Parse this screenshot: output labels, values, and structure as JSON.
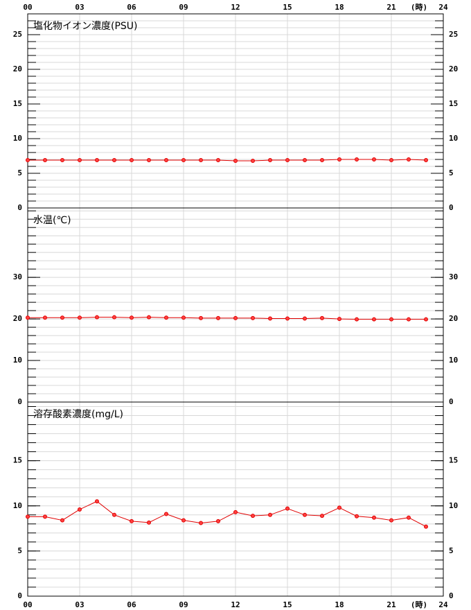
{
  "chart_data": [
    {
      "type": "line",
      "title": "塩化物イオン濃度(PSU)",
      "color": "#e00000",
      "grid": true,
      "minor_step": 1,
      "x": [
        0,
        1,
        2,
        3,
        4,
        5,
        6,
        7,
        8,
        9,
        10,
        11,
        12,
        13,
        14,
        15,
        16,
        17,
        18,
        19,
        20,
        21,
        22,
        23
      ],
      "values": [
        6.9,
        6.9,
        6.9,
        6.9,
        6.9,
        6.9,
        6.9,
        6.9,
        6.9,
        6.9,
        6.9,
        6.9,
        6.8,
        6.8,
        6.9,
        6.9,
        6.9,
        6.9,
        7.0,
        7.0,
        7.0,
        6.9,
        7.0,
        6.9
      ],
      "xlim": [
        0,
        24
      ],
      "xticks": [
        {
          "value": 0,
          "label": "00"
        },
        {
          "value": 3,
          "label": "03"
        },
        {
          "value": 6,
          "label": "06"
        },
        {
          "value": 9,
          "label": "09"
        },
        12,
        15,
        18,
        21,
        24
      ],
      "x_unit": "(時)",
      "ylim": [
        0,
        28
      ],
      "yticks": [
        0,
        5,
        10,
        15,
        20,
        25
      ]
    },
    {
      "type": "line",
      "title": "水温(℃)",
      "color": "#e00000",
      "grid": true,
      "minor_step": 2,
      "x": [
        0,
        1,
        2,
        3,
        4,
        5,
        6,
        7,
        8,
        9,
        10,
        11,
        12,
        13,
        14,
        15,
        16,
        17,
        18,
        19,
        20,
        21,
        22,
        23
      ],
      "values": [
        20.3,
        20.3,
        20.3,
        20.3,
        20.4,
        20.4,
        20.3,
        20.4,
        20.3,
        20.3,
        20.2,
        20.2,
        20.2,
        20.2,
        20.1,
        20.1,
        20.1,
        20.2,
        20.0,
        19.9,
        19.9,
        19.9,
        19.9,
        19.9
      ],
      "xlim": [
        0,
        24
      ],
      "xticks": [
        {
          "value": 0,
          "label": "00"
        },
        {
          "value": 3,
          "label": "03"
        },
        {
          "value": 6,
          "label": "06"
        },
        {
          "value": 9,
          "label": "09"
        },
        12,
        15,
        18,
        21,
        24
      ],
      "ylim": [
        0,
        46.7
      ],
      "yticks": [
        0,
        10,
        20,
        30
      ]
    },
    {
      "type": "line",
      "title": "溶存酸素濃度(mg/L)",
      "color": "#e00000",
      "grid": true,
      "minor_step": 1,
      "x": [
        0,
        1,
        2,
        3,
        4,
        5,
        6,
        7,
        8,
        9,
        10,
        11,
        12,
        13,
        14,
        15,
        16,
        17,
        18,
        19,
        20,
        21,
        22,
        23
      ],
      "values": [
        8.8,
        8.8,
        8.4,
        9.6,
        10.5,
        9.0,
        8.3,
        8.15,
        9.1,
        8.4,
        8.1,
        8.3,
        9.3,
        8.9,
        9.0,
        9.7,
        9.0,
        8.9,
        9.8,
        8.85,
        8.7,
        8.4,
        8.7,
        7.7
      ],
      "xlim": [
        0,
        24
      ],
      "xticks": [
        {
          "value": 0,
          "label": "00"
        },
        {
          "value": 3,
          "label": "03"
        },
        {
          "value": 6,
          "label": "06"
        },
        {
          "value": 9,
          "label": "09"
        },
        12,
        15,
        18,
        21,
        24
      ],
      "x_unit": "(時)",
      "ylim": [
        0,
        21.5
      ],
      "yticks": [
        0,
        5,
        10,
        15
      ]
    }
  ]
}
